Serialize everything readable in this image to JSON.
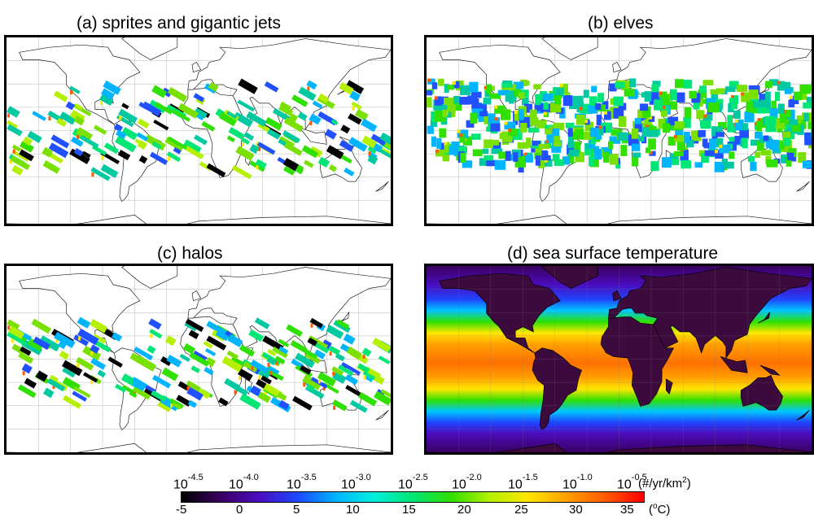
{
  "panels": {
    "a": {
      "title": "(a) sprites and gigantic jets"
    },
    "b": {
      "title": "(b) elves"
    },
    "c": {
      "title": "(c) halos"
    },
    "d": {
      "title": "(d) sea surface temperature"
    }
  },
  "colorbar": {
    "top_base": "10",
    "top_exponents": [
      "-4.5",
      "-4.0",
      "-3.5",
      "-3.0",
      "-2.5",
      "-2.0",
      "-1.5",
      "-1.0",
      "-0.5"
    ],
    "top_unit_prefix": "(#/yr/km",
    "top_unit_sup": "2",
    "top_unit_suffix": ")",
    "bottom_ticks": [
      "-5",
      "0",
      "5",
      "10",
      "15",
      "20",
      "25",
      "30",
      "35"
    ],
    "bottom_unit_prefix": "(",
    "bottom_unit_sup": "o",
    "bottom_unit_suffix": "C)",
    "colors": [
      "#000000",
      "#3a0060",
      "#4b0dbd",
      "#1e46ff",
      "#00b4ff",
      "#00f0dc",
      "#00e676",
      "#30e000",
      "#b4f000",
      "#ffe600",
      "#ffa000",
      "#ff5a00",
      "#ff0000"
    ]
  }
}
